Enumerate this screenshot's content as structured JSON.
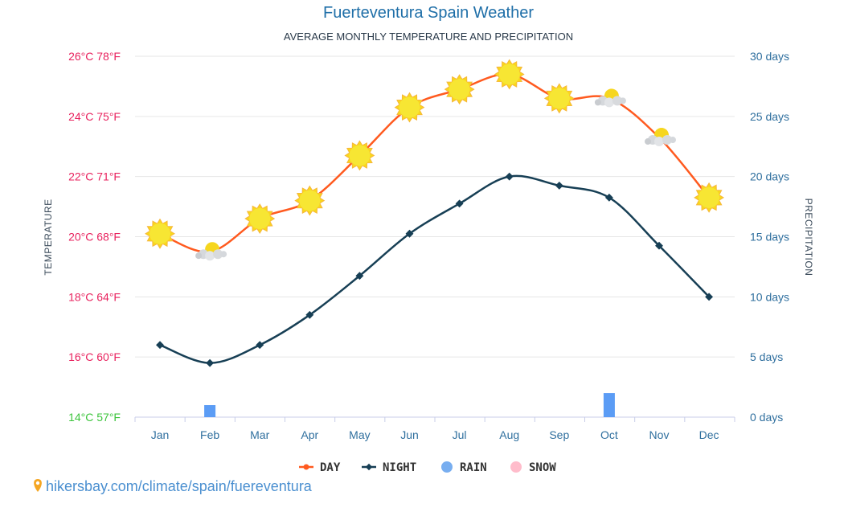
{
  "chart_data": {
    "type": "line",
    "title": "Fuerteventura Spain Weather",
    "subtitle": "AVERAGE MONTHLY TEMPERATURE AND PRECIPITATION",
    "ylabel": "TEMPERATURE",
    "y2label": "PRECIPITATION",
    "categories": [
      "Jan",
      "Feb",
      "Mar",
      "Apr",
      "May",
      "Jun",
      "Jul",
      "Aug",
      "Sep",
      "Oct",
      "Nov",
      "Dec"
    ],
    "yticks": [
      "14°C 57°F",
      "16°C 60°F",
      "18°C 64°F",
      "20°C 68°F",
      "22°C 71°F",
      "24°C 75°F",
      "26°C 78°F"
    ],
    "y2ticks": [
      "0 days",
      "5 days",
      "10 days",
      "15 days",
      "20 days",
      "25 days",
      "30 days"
    ],
    "ylim": [
      14,
      26
    ],
    "y2lim": [
      0,
      30
    ],
    "grid": true,
    "legend_placement": "bottom",
    "series": [
      {
        "name": "DAY",
        "type": "line",
        "color": "#ff5a1f",
        "axis": "left",
        "values": [
          20.1,
          19.5,
          20.6,
          21.2,
          22.7,
          24.3,
          24.9,
          25.4,
          24.6,
          24.6,
          23.3,
          21.3
        ],
        "icons": [
          "sun",
          "partly-cloudy",
          "sun",
          "sun",
          "sun",
          "sun",
          "sun",
          "sun",
          "sun",
          "partly-cloudy",
          "partly-cloudy",
          "sun"
        ]
      },
      {
        "name": "NIGHT",
        "type": "line",
        "color": "#173f55",
        "axis": "left",
        "values": [
          16.4,
          15.8,
          16.4,
          17.4,
          18.7,
          20.1,
          21.1,
          22.0,
          21.7,
          21.3,
          19.7,
          18.0
        ]
      },
      {
        "name": "RAIN",
        "type": "bar",
        "color": "#5b9cf5",
        "axis": "right",
        "values": [
          0,
          1,
          0,
          0,
          0,
          0,
          0,
          0,
          0,
          2,
          0,
          0
        ]
      },
      {
        "name": "SNOW",
        "type": "bar",
        "color": "#ffb6c8",
        "axis": "right",
        "values": [
          0,
          0,
          0,
          0,
          0,
          0,
          0,
          0,
          0,
          0,
          0,
          0
        ]
      }
    ]
  },
  "source": "hikersbay.com/climate/spain/fuereventura"
}
